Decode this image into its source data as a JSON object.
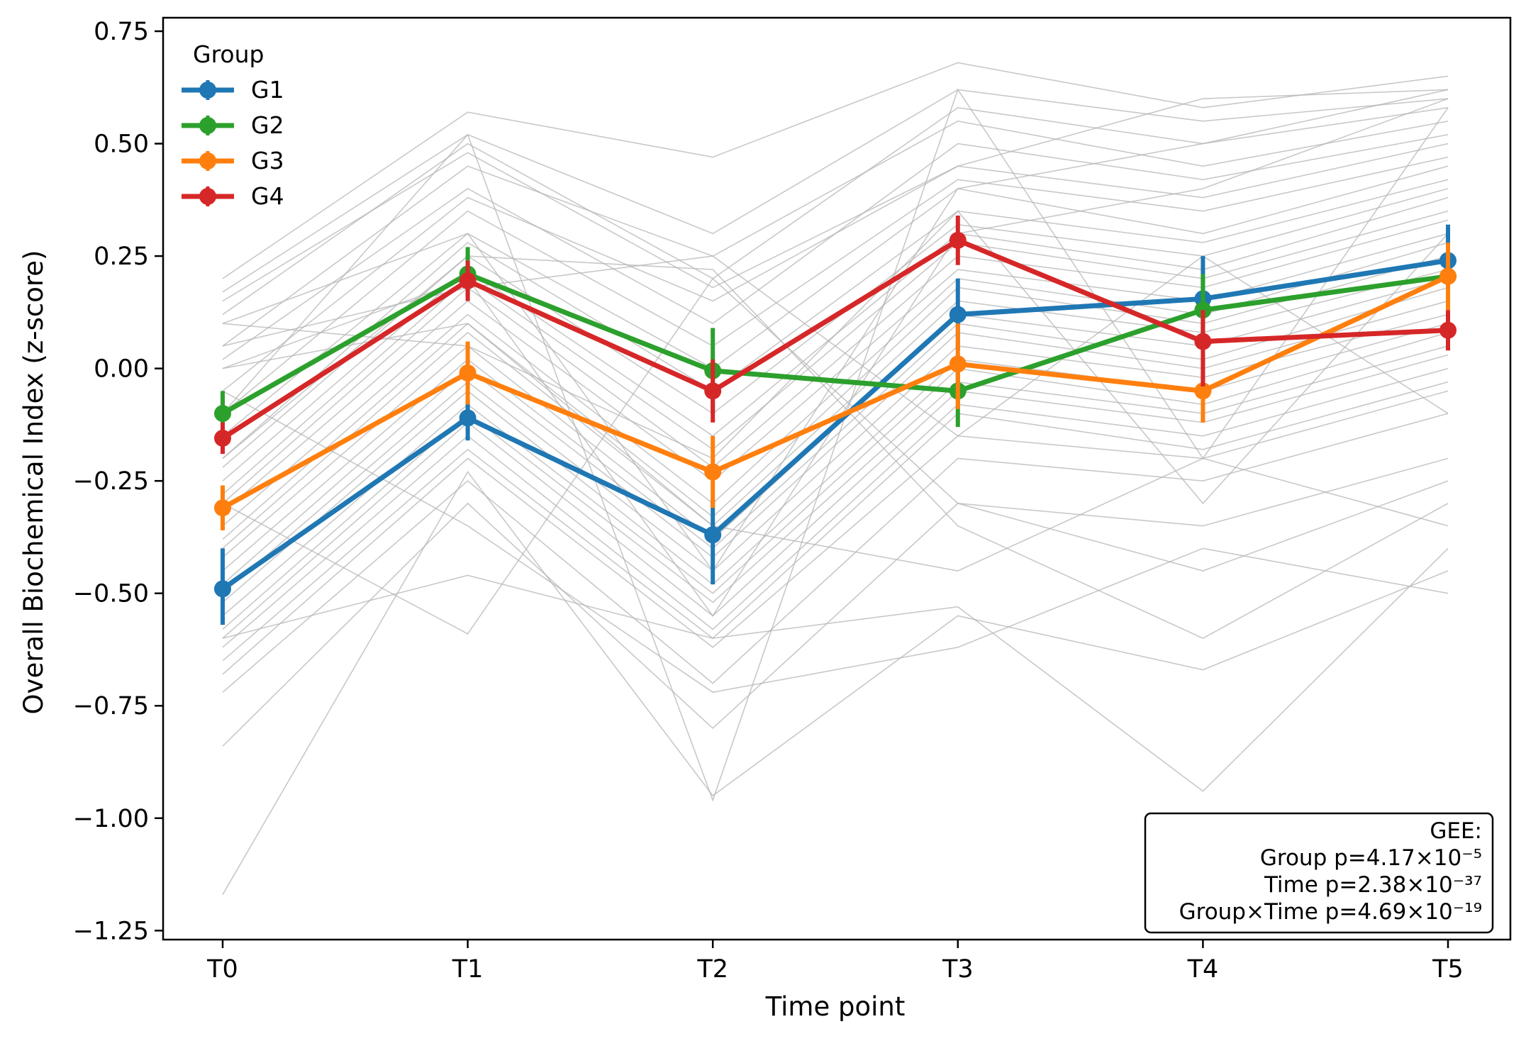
{
  "chart_data": {
    "type": "line",
    "xlabel": "Time point",
    "ylabel": "Overall Biochemical Index (z-score)",
    "categories": [
      "T0",
      "T1",
      "T2",
      "T3",
      "T4",
      "T5"
    ],
    "ylim": [
      -1.27,
      0.78
    ],
    "yticks": [
      {
        "value": 0.75,
        "label": "0.75"
      },
      {
        "value": 0.5,
        "label": "0.50"
      },
      {
        "value": 0.25,
        "label": "0.25"
      },
      {
        "value": 0.0,
        "label": "0.00"
      },
      {
        "value": -0.25,
        "label": "−0.25"
      },
      {
        "value": -0.5,
        "label": "−0.50"
      },
      {
        "value": -0.75,
        "label": "−0.75"
      },
      {
        "value": -1.0,
        "label": "−1.00"
      },
      {
        "value": -1.25,
        "label": "−1.25"
      }
    ],
    "grid": false,
    "legend": {
      "title": "Group",
      "position": "top-left"
    },
    "series": [
      {
        "name": "G1",
        "color": "#1f77b4",
        "values": [
          -0.49,
          -0.11,
          -0.37,
          0.12,
          0.155,
          0.24
        ],
        "err_low": [
          -0.57,
          -0.16,
          -0.48,
          0.04,
          0.06,
          0.15
        ],
        "err_high": [
          -0.4,
          -0.07,
          -0.29,
          0.2,
          0.25,
          0.32
        ]
      },
      {
        "name": "G2",
        "color": "#2ca02c",
        "values": [
          -0.1,
          0.21,
          -0.005,
          -0.05,
          0.13,
          0.205
        ],
        "err_low": [
          -0.15,
          0.16,
          -0.1,
          -0.13,
          0.06,
          0.14
        ],
        "err_high": [
          -0.05,
          0.27,
          0.09,
          0.03,
          0.21,
          0.27
        ]
      },
      {
        "name": "G3",
        "color": "#ff7f0e",
        "values": [
          -0.31,
          -0.01,
          -0.23,
          0.01,
          -0.05,
          0.205
        ],
        "err_low": [
          -0.36,
          -0.08,
          -0.31,
          -0.09,
          -0.12,
          0.13
        ],
        "err_high": [
          -0.26,
          0.06,
          -0.15,
          0.1,
          0.02,
          0.28
        ]
      },
      {
        "name": "G4",
        "color": "#d62728",
        "values": [
          -0.155,
          0.195,
          -0.05,
          0.285,
          0.06,
          0.085
        ],
        "err_low": [
          -0.19,
          0.15,
          -0.12,
          0.23,
          -0.04,
          0.04
        ],
        "err_high": [
          -0.12,
          0.24,
          0.02,
          0.34,
          0.13,
          0.13
        ]
      }
    ],
    "individual_lines": [
      [
        0.2,
        0.57,
        0.47,
        0.68,
        0.58,
        0.65
      ],
      [
        0.17,
        0.52,
        0.3,
        0.62,
        0.55,
        0.6
      ],
      [
        0.12,
        0.5,
        0.2,
        0.58,
        0.5,
        0.58
      ],
      [
        0.05,
        0.45,
        0.25,
        0.55,
        0.45,
        0.55
      ],
      [
        0.02,
        0.4,
        0.1,
        0.5,
        0.42,
        0.52
      ],
      [
        -0.05,
        0.38,
        0.15,
        0.45,
        0.38,
        0.5
      ],
      [
        -0.1,
        0.35,
        0.05,
        0.42,
        0.35,
        0.47
      ],
      [
        -0.15,
        0.3,
        0.0,
        0.4,
        0.3,
        0.45
      ],
      [
        -0.2,
        0.28,
        -0.05,
        0.35,
        0.28,
        0.42
      ],
      [
        -0.22,
        0.25,
        -0.1,
        0.32,
        0.25,
        0.4
      ],
      [
        -0.25,
        0.22,
        -0.15,
        0.3,
        0.22,
        0.38
      ],
      [
        -0.28,
        0.2,
        -0.18,
        0.28,
        0.2,
        0.35
      ],
      [
        -0.3,
        0.18,
        -0.22,
        0.25,
        0.18,
        0.33
      ],
      [
        -0.32,
        0.15,
        -0.25,
        0.22,
        0.15,
        0.3
      ],
      [
        -0.35,
        0.12,
        -0.3,
        0.2,
        0.12,
        0.28
      ],
      [
        -0.38,
        0.1,
        -0.33,
        0.18,
        0.1,
        0.25
      ],
      [
        -0.4,
        0.08,
        -0.35,
        0.15,
        0.08,
        0.22
      ],
      [
        -0.42,
        0.05,
        -0.38,
        0.12,
        0.05,
        0.2
      ],
      [
        -0.45,
        0.02,
        -0.4,
        0.1,
        0.02,
        0.18
      ],
      [
        -0.48,
        0.0,
        -0.42,
        0.08,
        0.0,
        0.15
      ],
      [
        -0.5,
        -0.03,
        -0.45,
        0.05,
        -0.02,
        0.12
      ],
      [
        -0.52,
        -0.05,
        -0.48,
        0.02,
        -0.05,
        0.1
      ],
      [
        -0.55,
        -0.08,
        -0.5,
        0.0,
        -0.08,
        0.08
      ],
      [
        -0.58,
        -0.1,
        -0.52,
        -0.03,
        -0.1,
        0.05
      ],
      [
        -0.6,
        -0.12,
        -0.55,
        -0.05,
        -0.12,
        0.03
      ],
      [
        -0.62,
        -0.15,
        -0.58,
        -0.08,
        -0.15,
        0.0
      ],
      [
        -0.65,
        -0.18,
        -0.6,
        -0.1,
        -0.18,
        -0.03
      ],
      [
        -0.68,
        -0.2,
        -0.62,
        -0.15,
        -0.2,
        -0.05
      ],
      [
        -0.72,
        -0.25,
        -0.7,
        -0.2,
        -0.25,
        -0.1
      ],
      [
        -0.84,
        -0.3,
        -0.8,
        -0.3,
        -0.35,
        -0.2
      ],
      [
        -1.17,
        -0.23,
        -0.95,
        -0.55,
        -0.67,
        -0.45
      ],
      [
        -0.6,
        -0.46,
        -0.6,
        -0.53,
        -0.94,
        -0.4
      ],
      [
        0.15,
        0.48,
        0.18,
        0.45,
        0.6,
        0.62
      ],
      [
        0.1,
        0.3,
        -0.45,
        0.4,
        0.5,
        0.62
      ],
      [
        0.0,
        0.2,
        -0.55,
        0.3,
        0.4,
        0.6
      ],
      [
        -0.1,
        0.52,
        -0.96,
        0.62,
        -0.2,
        0.58
      ],
      [
        -0.2,
        0.25,
        0.22,
        -0.35,
        -0.6,
        -0.3
      ],
      [
        -0.3,
        -0.59,
        0.2,
        -0.3,
        -0.45,
        -0.25
      ],
      [
        0.0,
        0.1,
        -0.35,
        -0.45,
        -0.2,
        -0.35
      ],
      [
        -0.05,
        -0.35,
        -0.72,
        -0.62,
        -0.4,
        -0.5
      ],
      [
        0.05,
        0.18,
        0.25,
        -0.15,
        0.25,
        -0.1
      ],
      [
        0.1,
        0.05,
        -0.2,
        0.35,
        -0.3,
        0.3
      ]
    ],
    "annotation": {
      "lines": [
        "GEE:",
        "Group p=4.17×10⁻⁵",
        "Time p=2.38×10⁻³⁷",
        "Group×Time p=4.69×10⁻¹⁹"
      ],
      "position": "bottom-right"
    }
  }
}
